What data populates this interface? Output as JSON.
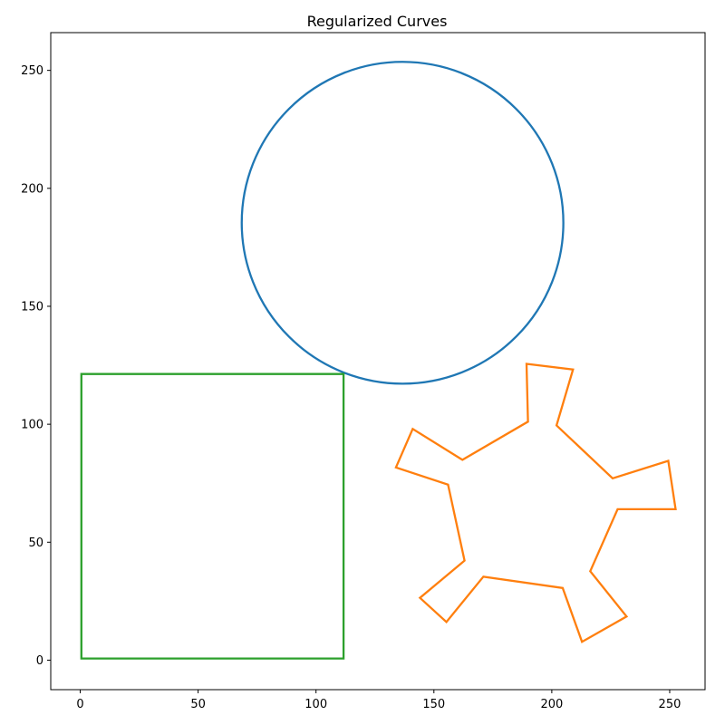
{
  "chart_data": {
    "type": "line",
    "title": "Regularized Curves",
    "xlabel": "",
    "ylabel": "",
    "xlim": [
      -12.5,
      265
    ],
    "ylim": [
      -12.5,
      266
    ],
    "grid": false,
    "x_ticks": [
      0,
      50,
      100,
      150,
      200,
      250
    ],
    "y_ticks": [
      0,
      50,
      100,
      150,
      200,
      250
    ],
    "colors": {
      "circle": "#1f77b4",
      "star": "#ff7f0e",
      "rectangle": "#2ca02c"
    },
    "series": [
      {
        "shape": "circle",
        "color": "#1f77b4",
        "center": [
          136.7,
          185.4
        ],
        "radius": 68.2
      },
      {
        "shape": "polygon",
        "color": "#ff7f0e",
        "points": [
          [
            189.3,
            125.6
          ],
          [
            209.0,
            123.2
          ],
          [
            202.0,
            99.5
          ],
          [
            225.8,
            77.1
          ],
          [
            249.4,
            84.5
          ],
          [
            252.5,
            64.0
          ],
          [
            227.9,
            64.0
          ],
          [
            216.3,
            37.7
          ],
          [
            231.7,
            18.5
          ],
          [
            212.8,
            7.8
          ],
          [
            204.6,
            30.6
          ],
          [
            171.0,
            35.4
          ],
          [
            155.3,
            16.2
          ],
          [
            144.1,
            26.4
          ],
          [
            163.0,
            42.2
          ],
          [
            156.0,
            74.4
          ],
          [
            133.9,
            81.7
          ],
          [
            141.0,
            98.0
          ],
          [
            162.1,
            84.9
          ],
          [
            189.9,
            101.1
          ]
        ]
      },
      {
        "shape": "polygon",
        "color": "#2ca02c",
        "points": [
          [
            0.5,
            0.7
          ],
          [
            111.7,
            0.7
          ],
          [
            111.7,
            121.3
          ],
          [
            0.5,
            121.3
          ]
        ]
      }
    ]
  }
}
